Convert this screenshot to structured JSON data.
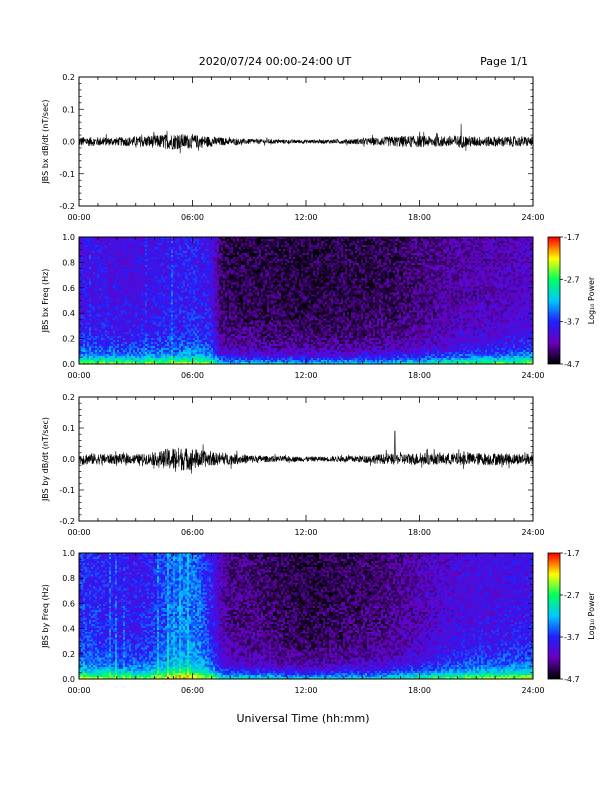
{
  "header": {
    "title": "2020/07/24  00:00-24:00 UT",
    "page": "Page 1/1"
  },
  "footer": {
    "xlabel": "Universal Time (hh:mm)"
  },
  "colorbar": {
    "label": "Log₁₀ Power",
    "ticks": [
      "-1.7",
      "-2.7",
      "-3.7",
      "-4.7"
    ],
    "tick_values": [
      -1.7,
      -2.7,
      -3.7,
      -4.7
    ],
    "range": [
      -4.7,
      -1.7
    ],
    "colors": [
      "#000000",
      "#6a00c0",
      "#2020ff",
      "#00c8ff",
      "#00ff60",
      "#ffff00",
      "#ff0000"
    ]
  },
  "chart_data": [
    {
      "type": "line",
      "title": "",
      "ylabel": "JBS bx dB/dt (nT/sec)",
      "xlabel": "",
      "x_ticks": [
        "00:00",
        "06:00",
        "12:00",
        "18:00",
        "24:00"
      ],
      "xlim": [
        0,
        24
      ],
      "ylim": [
        -0.2,
        0.2
      ],
      "y_ticks": [
        "0.2",
        "0.1",
        "0.0",
        "-0.1",
        "-0.2"
      ],
      "y_tick_values": [
        0.2,
        0.1,
        0.0,
        -0.1,
        -0.2
      ],
      "line_color": "#000000",
      "envelope": {
        "hours": [
          0,
          1,
          2,
          3,
          4,
          5,
          6,
          7,
          8,
          9,
          10,
          11,
          12,
          13,
          14,
          15,
          16,
          17,
          18,
          19,
          20,
          21,
          22,
          23,
          24
        ],
        "amplitude": [
          0.015,
          0.014,
          0.013,
          0.016,
          0.02,
          0.025,
          0.022,
          0.016,
          0.01,
          0.008,
          0.007,
          0.006,
          0.006,
          0.006,
          0.007,
          0.01,
          0.014,
          0.018,
          0.018,
          0.016,
          0.02,
          0.016,
          0.016,
          0.016,
          0.015
        ]
      },
      "spikes": [
        {
          "hour": 20.2,
          "value": 0.055
        }
      ]
    },
    {
      "type": "heatmap",
      "title": "",
      "ylabel": "JBS bx Freq (Hz)",
      "xlabel": "",
      "x_ticks": [
        "00:00",
        "06:00",
        "12:00",
        "18:00",
        "24:00"
      ],
      "xlim": [
        0,
        24
      ],
      "ylim": [
        0,
        1
      ],
      "y_ticks": [
        "1.0",
        "0.8",
        "0.6",
        "0.4",
        "0.2",
        "0.0"
      ],
      "y_tick_values": [
        1.0,
        0.8,
        0.6,
        0.4,
        0.2,
        0.0
      ],
      "zlim": [
        -4.7,
        -1.7
      ],
      "background_level_by_hour": {
        "hours": [
          0,
          1,
          2,
          3,
          4,
          5,
          6,
          7,
          7.5,
          8,
          12,
          16,
          18,
          20,
          22,
          24
        ],
        "level": [
          -3.9,
          -3.9,
          -3.95,
          -3.95,
          -3.9,
          -3.85,
          -3.8,
          -3.9,
          -4.45,
          -4.5,
          -4.55,
          -4.5,
          -4.4,
          -4.25,
          -4.2,
          -4.1
        ]
      }
    },
    {
      "type": "line",
      "title": "",
      "ylabel": "JBS by dB/dt (nT/sec)",
      "xlabel": "",
      "x_ticks": [
        "00:00",
        "06:00",
        "12:00",
        "18:00",
        "24:00"
      ],
      "xlim": [
        0,
        24
      ],
      "ylim": [
        -0.2,
        0.2
      ],
      "y_ticks": [
        "0.2",
        "0.1",
        "0.0",
        "-0.1",
        "-0.2"
      ],
      "y_tick_values": [
        0.2,
        0.1,
        0.0,
        -0.1,
        -0.2
      ],
      "line_color": "#000000",
      "envelope": {
        "hours": [
          0,
          1,
          2,
          3,
          4,
          5,
          6,
          7,
          8,
          9,
          10,
          11,
          12,
          13,
          14,
          15,
          16,
          17,
          18,
          19,
          20,
          21,
          22,
          23,
          24
        ],
        "amplitude": [
          0.02,
          0.018,
          0.016,
          0.015,
          0.02,
          0.04,
          0.035,
          0.022,
          0.018,
          0.014,
          0.01,
          0.009,
          0.008,
          0.008,
          0.01,
          0.012,
          0.016,
          0.018,
          0.02,
          0.018,
          0.02,
          0.02,
          0.02,
          0.018,
          0.018
        ]
      },
      "spikes": [
        {
          "hour": 16.7,
          "value": 0.09
        }
      ]
    },
    {
      "type": "heatmap",
      "title": "",
      "ylabel": "JBS by Freq (Hz)",
      "xlabel": "",
      "x_ticks": [
        "00:00",
        "06:00",
        "12:00",
        "18:00",
        "24:00"
      ],
      "xlim": [
        0,
        24
      ],
      "ylim": [
        0,
        1
      ],
      "y_ticks": [
        "1.0",
        "0.8",
        "0.6",
        "0.4",
        "0.2",
        "0.0"
      ],
      "y_tick_values": [
        1.0,
        0.8,
        0.6,
        0.4,
        0.2,
        0.0
      ],
      "zlim": [
        -4.7,
        -1.7
      ],
      "background_level_by_hour": {
        "hours": [
          0,
          1,
          2,
          3,
          4,
          5,
          6,
          7,
          7.5,
          8,
          12,
          16,
          18,
          20,
          22,
          24
        ],
        "level": [
          -3.75,
          -3.75,
          -3.85,
          -3.85,
          -3.75,
          -3.5,
          -3.45,
          -3.8,
          -4.2,
          -4.35,
          -4.55,
          -4.4,
          -4.2,
          -4.0,
          -3.95,
          -3.9
        ]
      }
    }
  ]
}
